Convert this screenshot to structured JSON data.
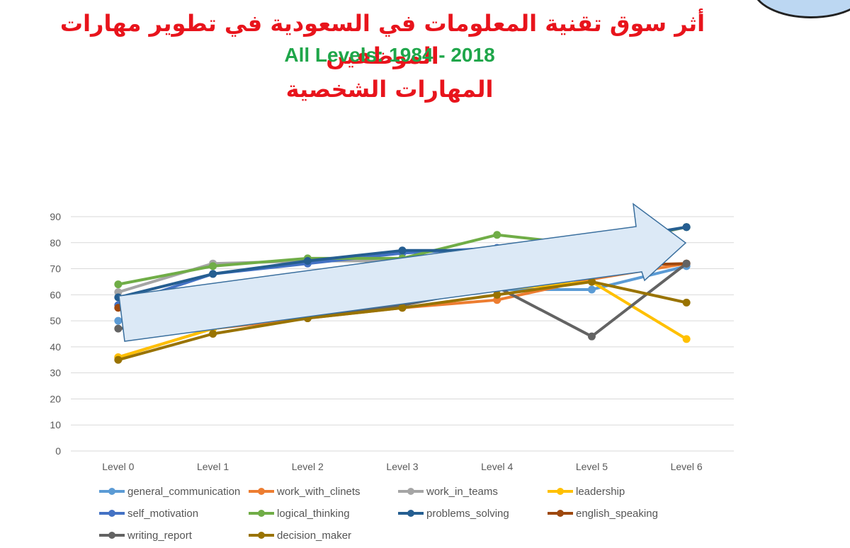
{
  "header": {
    "title_ar": "أثر سوق تقنية المعلومات في السعودية في تطوير مهارات الموظفين",
    "subtitle": "All Levels: 1984 - 2018",
    "section_ar": "المهارات الشخصية"
  },
  "colors": {
    "title_red": "#e8141c",
    "subtitle_green": "#1fa64a",
    "arrow_fill": "#dce9f6",
    "arrow_stroke": "#3a6f9e"
  },
  "chart_data": {
    "type": "line",
    "categories": [
      "Level 0",
      "Level 1",
      "Level 2",
      "Level 3",
      "Level 4",
      "Level 5",
      "Level 6"
    ],
    "ylim": [
      0,
      90
    ],
    "yticks": [
      0,
      10,
      20,
      30,
      40,
      50,
      60,
      70,
      80,
      90
    ],
    "grid": true,
    "legend_position": "bottom",
    "series": [
      {
        "name": "general_communication",
        "color": "#5b9bd5",
        "values": [
          50,
          47,
          52,
          57,
          62,
          62,
          71
        ]
      },
      {
        "name": "work_with_clinets",
        "color": "#ed7d31",
        "values": [
          36,
          47,
          51,
          55,
          58,
          66,
          72
        ]
      },
      {
        "name": "work_in_teams",
        "color": "#a5a5a5",
        "values": [
          61,
          72,
          73,
          73,
          76,
          78,
          86
        ]
      },
      {
        "name": "leadership",
        "color": "#ffc000",
        "values": [
          36,
          47,
          52,
          57,
          62,
          65,
          43
        ]
      },
      {
        "name": "self_motivation",
        "color": "#4472c4",
        "values": [
          56,
          68,
          72,
          76,
          78,
          79,
          86
        ]
      },
      {
        "name": "logical_thinking",
        "color": "#70ad47",
        "values": [
          64,
          71,
          74,
          74,
          83,
          79,
          86
        ]
      },
      {
        "name": "problems_solving",
        "color": "#255e91",
        "values": [
          59,
          68,
          73,
          77,
          77,
          80,
          86
        ]
      },
      {
        "name": "english_speaking",
        "color": "#9e480e",
        "values": [
          55,
          60,
          65,
          67,
          70,
          71,
          72
        ]
      },
      {
        "name": "writing_report",
        "color": "#636363",
        "values": [
          47,
          50,
          51,
          56,
          63,
          44,
          72
        ]
      },
      {
        "name": "decision_maker",
        "color": "#997300",
        "values": [
          35,
          45,
          51,
          55,
          60,
          65,
          57
        ]
      }
    ]
  }
}
